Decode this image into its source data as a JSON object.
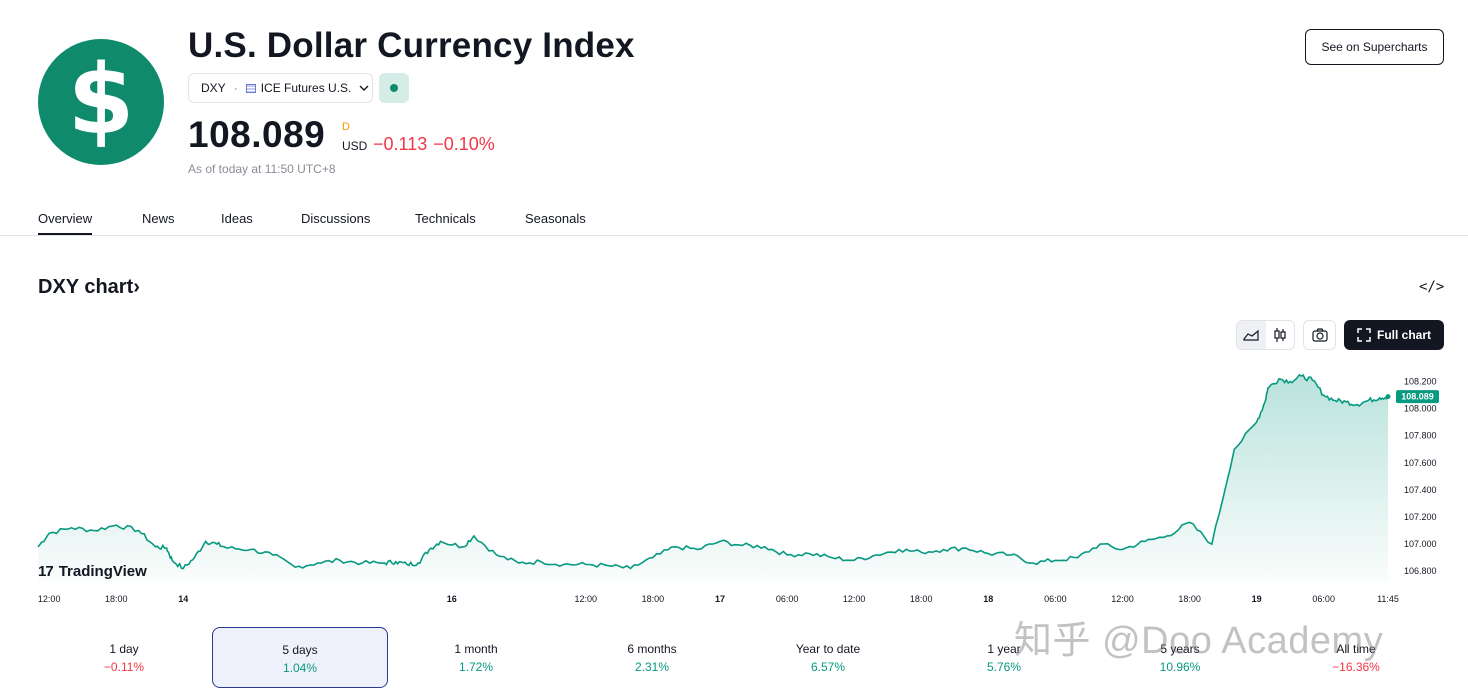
{
  "header": {
    "logo_glyph": "$",
    "title": "U.S. Dollar Currency Index",
    "ticker": "DXY",
    "separator": "·",
    "exchange": "ICE Futures U.S.",
    "market_status_color": "#0f8a6c",
    "price": "108.089",
    "price_flag": "D",
    "currency": "USD",
    "change": "−0.113",
    "change_pct": "−0.10%",
    "as_of": "As of today at 11:50 UTC+8",
    "supercharts_label": "See on Supercharts"
  },
  "tabs": [
    {
      "label": "Overview",
      "active": true
    },
    {
      "label": "News"
    },
    {
      "label": "Ideas"
    },
    {
      "label": "Discussions"
    },
    {
      "label": "Technicals"
    },
    {
      "label": "Seasonals"
    }
  ],
  "chart_section": {
    "title": "DXY chart",
    "title_chevron": "›",
    "embed_icon": "</>",
    "full_chart_label": "Full chart",
    "brand": "TradingView",
    "brand_mark": "17"
  },
  "chart_data": {
    "type": "area",
    "series": [
      {
        "color": "#089981",
        "x": [
          "13 11:00",
          "13 12:00",
          "13 14:00",
          "13 16:00",
          "13 18:00",
          "13 20:00",
          "13 21:30",
          "13 22:30",
          "13 23:00",
          "14 00:00",
          "14 01:00",
          "14 02:00",
          "14 03:00",
          "14 04:00",
          "14 06:00",
          "14 08:00",
          "14 10:00",
          "14 12:00",
          "14 14:00",
          "14 16:00",
          "14 18:00",
          "14 19:00",
          "14 20:00",
          "14 21:00",
          "14 22:00",
          "14 23:00",
          "16 01:00",
          "16 02:00",
          "16 04:00",
          "16 06:00",
          "16 08:00",
          "16 10:00",
          "16 12:00",
          "16 14:00",
          "16 16:00",
          "16 18:00",
          "16 20:00",
          "16 22:00",
          "17 00:00",
          "17 02:00",
          "17 04:00",
          "17 06:00",
          "17 08:00",
          "17 10:00",
          "17 12:00",
          "17 14:00",
          "17 16:00",
          "17 18:00",
          "17 20:00",
          "17 22:00",
          "18 00:00",
          "18 02:00",
          "18 04:00",
          "18 06:00",
          "18 08:00",
          "18 10:00",
          "18 12:00",
          "18 14:00",
          "18 16:00",
          "18 18:00",
          "18 20:00",
          "18 22:00",
          "19 00:00",
          "19 00:45",
          "19 01:00",
          "19 02:00",
          "19 03:00",
          "19 04:00",
          "19 05:00",
          "19 06:00",
          "19 07:00",
          "19 08:00",
          "19 09:00",
          "19 10:00",
          "19 11:00",
          "19 11:45"
        ],
        "y": [
          106.98,
          107.08,
          107.12,
          107.1,
          107.14,
          107.1,
          106.98,
          106.97,
          106.88,
          106.82,
          106.9,
          107.02,
          107.0,
          106.97,
          106.96,
          106.92,
          106.83,
          106.86,
          106.88,
          106.86,
          106.86,
          106.87,
          106.85,
          106.86,
          106.96,
          107.02,
          106.98,
          107.06,
          106.92,
          106.86,
          106.87,
          106.85,
          106.85,
          106.84,
          106.82,
          106.9,
          106.98,
          106.96,
          107.02,
          106.99,
          106.98,
          106.92,
          106.93,
          106.9,
          106.88,
          106.92,
          106.96,
          106.94,
          106.96,
          106.97,
          106.93,
          106.92,
          106.86,
          106.88,
          106.9,
          107.0,
          106.96,
          107.02,
          107.06,
          107.16,
          107.0,
          107.7,
          107.9,
          108.05,
          108.15,
          108.22,
          108.2,
          108.24,
          108.21,
          108.1,
          108.06,
          108.05,
          108.03,
          108.06,
          108.08,
          108.089
        ]
      }
    ],
    "last_value_label": "108.089",
    "x_ticks": [
      "12:00",
      "18:00",
      "14",
      "16",
      "12:00",
      "18:00",
      "17",
      "06:00",
      "12:00",
      "18:00",
      "18",
      "06:00",
      "12:00",
      "18:00",
      "19",
      "06:00",
      "11:45"
    ],
    "y_ticks": [
      "108.200",
      "108.000",
      "107.800",
      "107.600",
      "107.400",
      "107.200",
      "107.000",
      "106.800"
    ],
    "ylim": [
      106.72,
      108.3
    ],
    "grid": false
  },
  "periods": [
    {
      "label": "1 day",
      "value": "−0.11%",
      "dir": "neg"
    },
    {
      "label": "5 days",
      "value": "1.04%",
      "dir": "pos",
      "active": true
    },
    {
      "label": "1 month",
      "value": "1.72%",
      "dir": "pos"
    },
    {
      "label": "6 months",
      "value": "2.31%",
      "dir": "pos"
    },
    {
      "label": "Year to date",
      "value": "6.57%",
      "dir": "pos"
    },
    {
      "label": "1 year",
      "value": "5.76%",
      "dir": "pos"
    },
    {
      "label": "5 years",
      "value": "10.96%",
      "dir": "pos"
    },
    {
      "label": "All time",
      "value": "−16.36%",
      "dir": "neg"
    }
  ],
  "watermark": "知乎 @Doo Academy"
}
